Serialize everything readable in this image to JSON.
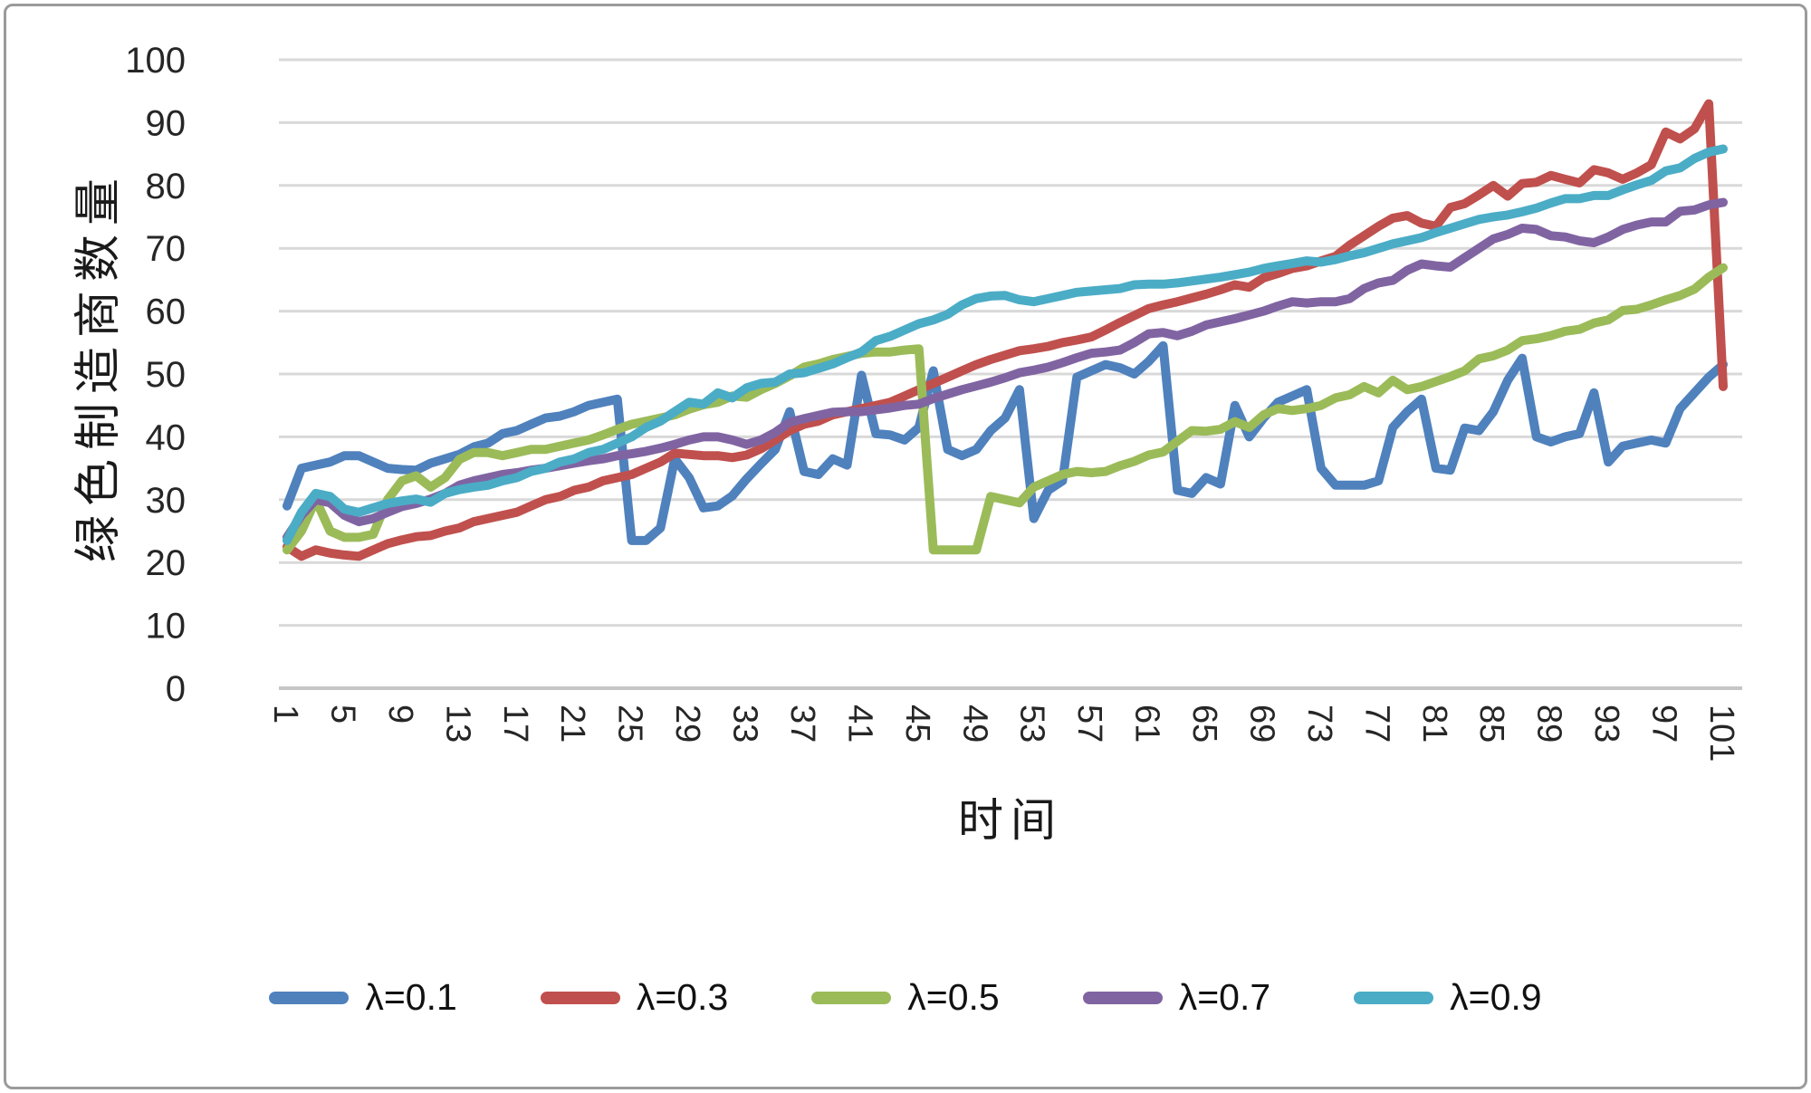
{
  "chart_data": {
    "type": "line",
    "title": "",
    "xlabel": "时间",
    "ylabel": "绿色制造商数量",
    "legend_position": "bottom",
    "grid": true,
    "grid_color": "#d9d9d9",
    "axis_text_color": "#262626",
    "ylim": [
      0,
      100
    ],
    "y_ticks": [
      0,
      10,
      20,
      30,
      40,
      50,
      60,
      70,
      80,
      90,
      100
    ],
    "x_ticks": [
      1,
      5,
      9,
      13,
      17,
      21,
      25,
      29,
      33,
      37,
      41,
      45,
      49,
      53,
      57,
      61,
      65,
      69,
      73,
      77,
      81,
      85,
      89,
      93,
      97,
      101
    ],
    "x_range": [
      1,
      101
    ],
    "series": [
      {
        "name": "λ=0.1",
        "color": "#4f81bd",
        "values": [
          29,
          35,
          35.5,
          36,
          37,
          37,
          36,
          35,
          34.8,
          34.7,
          35.8,
          36.5,
          37.2,
          38.4,
          39,
          40.5,
          41,
          42,
          43,
          43.3,
          44,
          45,
          45.5,
          46,
          23.5,
          23.5,
          25.5,
          36.5,
          33.5,
          28.7,
          29,
          30.6,
          33.3,
          35.7,
          38,
          44,
          34.5,
          34,
          36.5,
          35.5,
          49.8,
          40.5,
          40.3,
          39.5,
          41.5,
          50.5,
          38,
          37,
          38,
          41,
          43,
          47.5,
          27,
          31.5,
          33,
          49.5,
          50.5,
          51.5,
          51,
          50,
          52,
          54.5,
          31.5,
          31,
          33.5,
          32.5,
          45,
          40,
          43,
          45.5,
          46.5,
          47.5,
          35,
          32.3,
          32.3,
          32.3,
          33,
          41.5,
          44,
          46,
          35,
          34.7,
          41.4,
          41,
          44,
          49,
          52.5,
          40,
          39.2,
          40,
          40.5,
          47,
          36,
          38.5,
          39,
          39.5,
          39,
          44.5,
          47,
          49.5,
          51.5
        ]
      },
      {
        "name": "λ=0.3",
        "color": "#c0504d",
        "values": [
          22.5,
          21,
          22,
          21.5,
          21.2,
          21,
          22,
          23,
          23.6,
          24.1,
          24.3,
          25,
          25.5,
          26.5,
          27,
          27.5,
          28,
          29,
          30,
          30.5,
          31.5,
          32,
          33,
          33.5,
          34,
          35,
          36,
          37.4,
          37.2,
          37,
          37,
          36.7,
          37.1,
          38.1,
          39.5,
          41,
          42,
          42.5,
          43.5,
          44,
          44.5,
          45,
          45.5,
          46.5,
          47.5,
          48.5,
          49.5,
          50.5,
          51.5,
          52.3,
          53,
          53.7,
          54,
          54.4,
          55,
          55.4,
          55.9,
          57,
          58.2,
          59.3,
          60.4,
          61,
          61.5,
          62.1,
          62.7,
          63.4,
          64.2,
          63.8,
          65.3,
          66,
          66.8,
          67.2,
          68,
          68.7,
          70.5,
          72,
          73.5,
          74.8,
          75.2,
          74,
          73.5,
          76.5,
          77.1,
          78.5,
          80,
          78.3,
          80.3,
          80.5,
          81.6,
          81,
          80.4,
          82.5,
          82,
          81,
          82,
          83.3,
          88.5,
          87.4,
          89,
          93,
          48
        ]
      },
      {
        "name": "λ=0.5",
        "color": "#9bbb59",
        "values": [
          22,
          25,
          30,
          25,
          24,
          24,
          24.5,
          30,
          33,
          33.8,
          32,
          33.5,
          36.4,
          37.5,
          37.5,
          37,
          37.5,
          38,
          38,
          38.5,
          39,
          39.5,
          40.3,
          41.2,
          42,
          42.5,
          43,
          43.5,
          44.4,
          45.1,
          45.5,
          46.5,
          46.3,
          47.5,
          48.5,
          49.7,
          51.1,
          51.6,
          52.3,
          52.8,
          53.3,
          53.5,
          53.5,
          53.8,
          54,
          22,
          22,
          22,
          22,
          30.5,
          30,
          29.5,
          32,
          33,
          34,
          34.5,
          34.3,
          34.5,
          35.4,
          36.1,
          37.1,
          37.6,
          39.3,
          41,
          40.9,
          41.2,
          42.4,
          41.5,
          43.5,
          44.5,
          44.2,
          44.5,
          45,
          46.2,
          46.7,
          48,
          47,
          49,
          47.5,
          48,
          48.8,
          49.6,
          50.5,
          52.4,
          52.9,
          53.8,
          55.3,
          55.6,
          56.1,
          56.8,
          57.1,
          58.1,
          58.6,
          60.1,
          60.3,
          61,
          61.8,
          62.5,
          63.5,
          65.4,
          66.9
        ]
      },
      {
        "name": "λ=0.7",
        "color": "#8064a2",
        "values": [
          24,
          27.5,
          30,
          29.5,
          27.5,
          26.5,
          27,
          28,
          28.9,
          29.4,
          30.1,
          31,
          32.3,
          33,
          33.5,
          34,
          34.3,
          34.7,
          35,
          35.4,
          35.8,
          36.2,
          36.5,
          37,
          37.3,
          37.7,
          38.2,
          38.8,
          39.5,
          40,
          40,
          39.5,
          38.8,
          39.5,
          40.7,
          42.3,
          42.9,
          43.4,
          43.9,
          44,
          44,
          44.3,
          44.6,
          45,
          45.2,
          46.1,
          46.8,
          47.5,
          48.1,
          48.7,
          49.4,
          50.2,
          50.6,
          51.1,
          51.8,
          52.6,
          53.3,
          53.5,
          53.8,
          55,
          56.4,
          56.6,
          56.1,
          56.8,
          57.8,
          58.3,
          58.8,
          59.4,
          60,
          60.8,
          61.5,
          61.3,
          61.5,
          61.5,
          62,
          63.6,
          64.5,
          64.9,
          66.5,
          67.5,
          67.2,
          67,
          68.5,
          70,
          71.5,
          72.2,
          73.2,
          73,
          72,
          71.8,
          71.2,
          70.9,
          71.8,
          73,
          73.7,
          74.2,
          74.2,
          75.9,
          76.1,
          76.9,
          77.3
        ]
      },
      {
        "name": "λ=0.9",
        "color": "#4bacc6",
        "values": [
          23.5,
          28,
          31,
          30.5,
          28.5,
          28,
          28.7,
          29.4,
          29.8,
          30.1,
          29.6,
          31,
          31.6,
          32,
          32.3,
          33,
          33.5,
          34.5,
          35,
          36,
          36.5,
          37.5,
          38,
          39,
          40,
          41.5,
          42.5,
          44,
          45.5,
          45.2,
          47,
          46.2,
          47.8,
          48.5,
          48.7,
          50,
          50.2,
          50.9,
          51.6,
          52.6,
          53.5,
          55.3,
          56,
          57,
          58,
          58.6,
          59.5,
          61,
          62,
          62.4,
          62.5,
          61.8,
          61.5,
          62,
          62.5,
          63,
          63.2,
          63.4,
          63.6,
          64.2,
          64.3,
          64.3,
          64.5,
          64.8,
          65.1,
          65.4,
          65.8,
          66.2,
          66.8,
          67.2,
          67.6,
          68,
          67.8,
          68.2,
          68.8,
          69.3,
          70,
          70.7,
          71.2,
          71.7,
          72.5,
          73.2,
          73.9,
          74.6,
          75,
          75.3,
          75.8,
          76.4,
          77.2,
          77.9,
          77.9,
          78.4,
          78.4,
          79.3,
          80.1,
          80.8,
          82.3,
          82.8,
          84.3,
          85.3,
          85.8
        ]
      }
    ]
  }
}
